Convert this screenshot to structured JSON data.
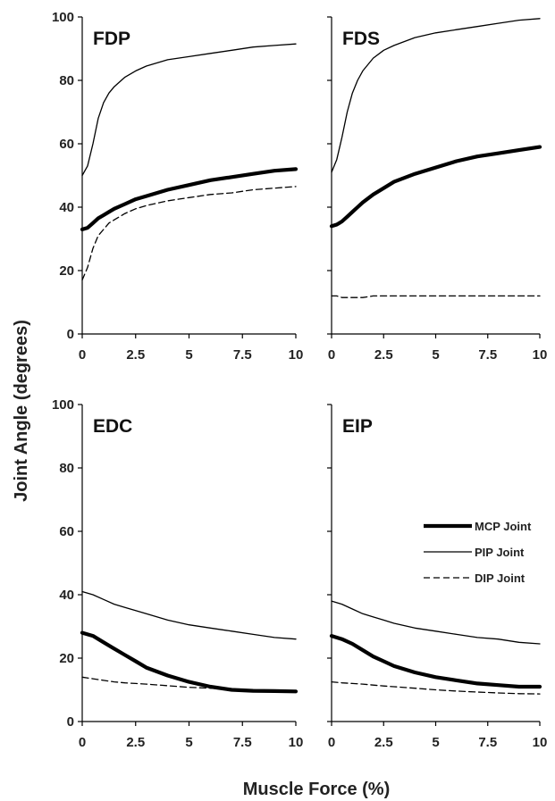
{
  "xlabel": "Muscle Force (%)",
  "ylabel": "Joint Angle (degrees)",
  "legend": [
    {
      "label": "MCP Joint",
      "style": "thick"
    },
    {
      "label": "PIP Joint",
      "style": "thin"
    },
    {
      "label": "DIP Joint",
      "style": "dashed"
    }
  ],
  "chart_data": [
    {
      "type": "line",
      "title": "FDP",
      "xlim": [
        0,
        10
      ],
      "ylim": [
        0,
        100
      ],
      "xticks": [
        "0",
        "2.5",
        "5",
        "7.5",
        "10"
      ],
      "yticks": [
        "0",
        "20",
        "40",
        "60",
        "80",
        "100"
      ],
      "x": [
        0,
        0.25,
        0.5,
        0.75,
        1,
        1.25,
        1.5,
        2,
        2.5,
        3,
        4,
        5,
        6,
        7,
        8,
        9,
        10
      ],
      "series": [
        {
          "name": "MCP Joint",
          "values": [
            33,
            33.5,
            35,
            36.5,
            37.5,
            38.5,
            39.5,
            41,
            42.5,
            43.5,
            45.5,
            47,
            48.5,
            49.5,
            50.5,
            51.5,
            52
          ]
        },
        {
          "name": "PIP Joint",
          "values": [
            50,
            53,
            60,
            68,
            73,
            76,
            78,
            81,
            83,
            84.5,
            86.5,
            87.5,
            88.5,
            89.5,
            90.5,
            91,
            91.5
          ]
        },
        {
          "name": "DIP Joint",
          "values": [
            17,
            21,
            27,
            31,
            33,
            35,
            36,
            38,
            39.5,
            40.5,
            42,
            43,
            44,
            44.5,
            45.5,
            46,
            46.5
          ]
        }
      ]
    },
    {
      "type": "line",
      "title": "FDS",
      "xlim": [
        0,
        10
      ],
      "ylim": [
        0,
        100
      ],
      "xticks": [
        "0",
        "2.5",
        "5",
        "7.5",
        "10"
      ],
      "yticks": [
        "0",
        "20",
        "40",
        "60",
        "80",
        "100"
      ],
      "x": [
        0,
        0.25,
        0.5,
        0.75,
        1,
        1.25,
        1.5,
        2,
        2.5,
        3,
        4,
        5,
        6,
        7,
        8,
        9,
        10
      ],
      "series": [
        {
          "name": "MCP Joint",
          "values": [
            34,
            34.5,
            35.5,
            37,
            38.5,
            40,
            41.5,
            44,
            46,
            48,
            50.5,
            52.5,
            54.5,
            56,
            57,
            58,
            59
          ]
        },
        {
          "name": "PIP Joint",
          "values": [
            51,
            55,
            62,
            70,
            76,
            80,
            83,
            87,
            89.5,
            91,
            93.5,
            95,
            96,
            97,
            98,
            99,
            99.5
          ]
        },
        {
          "name": "DIP Joint",
          "values": [
            12,
            12,
            11.5,
            11.5,
            11.5,
            11.5,
            11.5,
            12,
            12,
            12,
            12,
            12,
            12,
            12,
            12,
            12,
            12
          ]
        }
      ]
    },
    {
      "type": "line",
      "title": "EDC",
      "xlim": [
        0,
        10
      ],
      "ylim": [
        0,
        100
      ],
      "xticks": [
        "0",
        "2.5",
        "5",
        "7.5",
        "10"
      ],
      "yticks": [
        "0",
        "20",
        "40",
        "60",
        "80",
        "100"
      ],
      "x": [
        0,
        0.5,
        1,
        1.5,
        2,
        2.5,
        3,
        4,
        5,
        6,
        7,
        8,
        9,
        10
      ],
      "series": [
        {
          "name": "MCP Joint",
          "values": [
            28,
            27,
            25,
            23,
            21,
            19,
            17,
            14.5,
            12.5,
            11,
            10,
            9.7,
            9.6,
            9.5
          ]
        },
        {
          "name": "PIP Joint",
          "values": [
            41,
            40,
            38.5,
            37,
            36,
            35,
            34,
            32,
            30.5,
            29.5,
            28.5,
            27.5,
            26.5,
            26
          ]
        },
        {
          "name": "DIP Joint",
          "values": [
            14,
            13.5,
            13,
            12.5,
            12.2,
            12,
            11.8,
            11.3,
            10.8,
            10.5,
            10.2,
            10,
            9.8,
            9.6
          ]
        }
      ]
    },
    {
      "type": "line",
      "title": "EIP",
      "xlim": [
        0,
        10
      ],
      "ylim": [
        0,
        100
      ],
      "xticks": [
        "0",
        "2.5",
        "5",
        "7.5",
        "10"
      ],
      "yticks": [
        "0",
        "20",
        "40",
        "60",
        "80",
        "100"
      ],
      "x": [
        0,
        0.5,
        1,
        1.5,
        2,
        2.5,
        3,
        4,
        5,
        6,
        7,
        8,
        9,
        10
      ],
      "series": [
        {
          "name": "MCP Joint",
          "values": [
            27,
            26,
            24.5,
            22.5,
            20.5,
            19,
            17.5,
            15.5,
            14,
            13,
            12,
            11.5,
            11,
            11
          ]
        },
        {
          "name": "PIP Joint",
          "values": [
            38,
            37,
            35.5,
            34,
            33,
            32,
            31,
            29.5,
            28.5,
            27.5,
            26.5,
            26,
            25,
            24.5
          ]
        },
        {
          "name": "DIP Joint",
          "values": [
            12.5,
            12.2,
            12,
            11.8,
            11.5,
            11.2,
            11,
            10.5,
            10,
            9.6,
            9.3,
            9,
            8.8,
            8.7
          ]
        }
      ]
    }
  ]
}
